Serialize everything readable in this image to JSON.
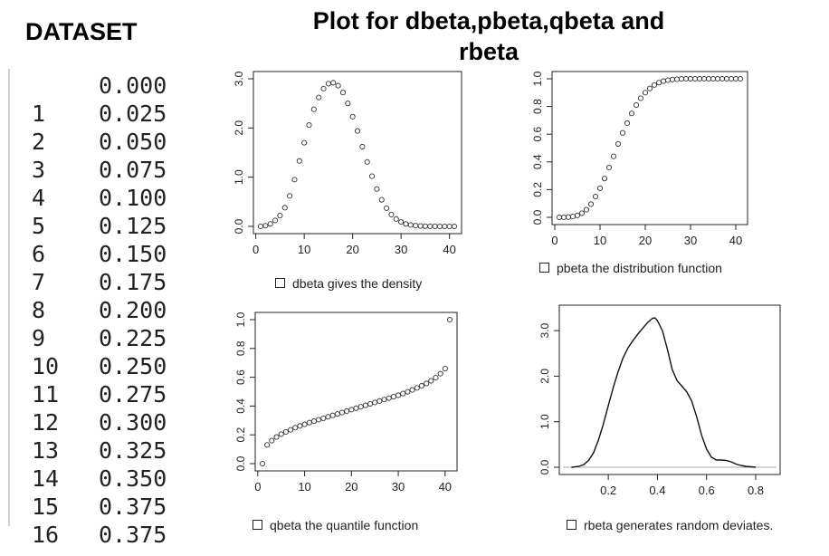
{
  "dataset": {
    "title": "DATASET",
    "rows": [
      {
        "index": "",
        "value": "0.000"
      },
      {
        "index": "1",
        "value": "0.025"
      },
      {
        "index": "2",
        "value": "0.050"
      },
      {
        "index": "3",
        "value": "0.075"
      },
      {
        "index": "4",
        "value": "0.100"
      },
      {
        "index": "5",
        "value": "0.125"
      },
      {
        "index": "6",
        "value": "0.150"
      },
      {
        "index": "7",
        "value": "0.175"
      },
      {
        "index": "8",
        "value": "0.200"
      },
      {
        "index": "9",
        "value": "0.225"
      },
      {
        "index": "10",
        "value": "0.250"
      },
      {
        "index": "11",
        "value": "0.275"
      },
      {
        "index": "12",
        "value": "0.300"
      },
      {
        "index": "13",
        "value": "0.325"
      },
      {
        "index": "14",
        "value": "0.350"
      },
      {
        "index": "15",
        "value": "0.375"
      },
      {
        "index": "16",
        "value": "0.375"
      }
    ]
  },
  "main_title_line1": "Plot for dbeta,pbeta,qbeta and",
  "main_title_line2": "rbeta",
  "chart_data": [
    {
      "id": "dbeta",
      "type": "scatter",
      "caption": "dbeta gives the density",
      "xlim": [
        1,
        41
      ],
      "ylim": [
        0,
        3
      ],
      "xticks": [
        0,
        10,
        20,
        30,
        40
      ],
      "xtick_labels": [
        "0",
        "10",
        "20",
        "30",
        "40"
      ],
      "yticks": [
        0,
        1,
        2,
        3
      ],
      "ytick_labels": [
        "0.0",
        "1.0",
        "2.0",
        "3.0"
      ],
      "x": [
        1,
        2,
        3,
        4,
        5,
        6,
        7,
        8,
        9,
        10,
        11,
        12,
        13,
        14,
        15,
        16,
        17,
        18,
        19,
        20,
        21,
        22,
        23,
        24,
        25,
        26,
        27,
        28,
        29,
        30,
        31,
        32,
        33,
        34,
        35,
        36,
        37,
        38,
        39,
        40,
        41
      ],
      "y": [
        0.0,
        0.014,
        0.05,
        0.12,
        0.22,
        0.38,
        0.62,
        0.95,
        1.33,
        1.7,
        2.06,
        2.38,
        2.62,
        2.8,
        2.9,
        2.92,
        2.86,
        2.72,
        2.5,
        2.23,
        1.94,
        1.62,
        1.31,
        1.02,
        0.76,
        0.54,
        0.37,
        0.24,
        0.15,
        0.09,
        0.05,
        0.03,
        0.016,
        0.008,
        0.004,
        0.002,
        0.001,
        0.0,
        0.0,
        0.0,
        0.0
      ]
    },
    {
      "id": "pbeta",
      "type": "scatter",
      "caption": "pbeta the distribution function",
      "xlim": [
        1,
        41
      ],
      "ylim": [
        0,
        1
      ],
      "xticks": [
        0,
        10,
        20,
        30,
        40
      ],
      "xtick_labels": [
        "0",
        "10",
        "20",
        "30",
        "40"
      ],
      "yticks": [
        0,
        0.2,
        0.4,
        0.6,
        0.8,
        1.0
      ],
      "ytick_labels": [
        "0.0",
        "0.2",
        "0.4",
        "0.6",
        "0.8",
        "1.0"
      ],
      "x": [
        1,
        2,
        3,
        4,
        5,
        6,
        7,
        8,
        9,
        10,
        11,
        12,
        13,
        14,
        15,
        16,
        17,
        18,
        19,
        20,
        21,
        22,
        23,
        24,
        25,
        26,
        27,
        28,
        29,
        30,
        31,
        32,
        33,
        34,
        35,
        36,
        37,
        38,
        39,
        40,
        41
      ],
      "y": [
        0.0,
        0.0,
        0.002,
        0.006,
        0.014,
        0.03,
        0.055,
        0.095,
        0.15,
        0.21,
        0.28,
        0.36,
        0.44,
        0.53,
        0.61,
        0.68,
        0.75,
        0.81,
        0.86,
        0.9,
        0.93,
        0.955,
        0.972,
        0.983,
        0.99,
        0.995,
        0.997,
        0.999,
        1.0,
        1.0,
        1.0,
        1.0,
        1.0,
        1.0,
        1.0,
        1.0,
        1.0,
        1.0,
        1.0,
        1.0,
        1.0
      ]
    },
    {
      "id": "qbeta",
      "type": "scatter",
      "caption": "qbeta the quantile function",
      "xlim": [
        1,
        41
      ],
      "ylim": [
        0,
        1
      ],
      "xticks": [
        0,
        10,
        20,
        30,
        40
      ],
      "xtick_labels": [
        "0",
        "10",
        "20",
        "30",
        "40"
      ],
      "yticks": [
        0,
        0.2,
        0.4,
        0.6,
        0.8,
        1.0
      ],
      "ytick_labels": [
        "0.0",
        "0.2",
        "0.4",
        "0.6",
        "0.8",
        "1.0"
      ],
      "x": [
        1,
        2,
        3,
        4,
        5,
        6,
        7,
        8,
        9,
        10,
        11,
        12,
        13,
        14,
        15,
        16,
        17,
        18,
        19,
        20,
        21,
        22,
        23,
        24,
        25,
        26,
        27,
        28,
        29,
        30,
        31,
        32,
        33,
        34,
        35,
        36,
        37,
        38,
        39,
        40,
        41
      ],
      "y": [
        0.0,
        0.13,
        0.16,
        0.185,
        0.205,
        0.22,
        0.235,
        0.25,
        0.262,
        0.273,
        0.285,
        0.295,
        0.305,
        0.315,
        0.325,
        0.335,
        0.345,
        0.355,
        0.365,
        0.375,
        0.385,
        0.395,
        0.405,
        0.415,
        0.425,
        0.435,
        0.445,
        0.455,
        0.465,
        0.475,
        0.487,
        0.499,
        0.512,
        0.526,
        0.541,
        0.557,
        0.575,
        0.597,
        0.625,
        0.66,
        1.0
      ]
    },
    {
      "id": "rbeta",
      "type": "line",
      "caption": "rbeta generates random deviates.",
      "xlim": [
        0.03,
        0.87
      ],
      "ylim": [
        0,
        3.4
      ],
      "xticks": [
        0.2,
        0.4,
        0.6,
        0.8
      ],
      "xtick_labels": [
        "0.2",
        "0.4",
        "0.6",
        "0.8"
      ],
      "yticks": [
        0,
        1,
        2,
        3
      ],
      "ytick_labels": [
        "0.0",
        "1.0",
        "2.0",
        "3.0"
      ],
      "x": [
        0.05,
        0.08,
        0.1,
        0.12,
        0.14,
        0.16,
        0.18,
        0.2,
        0.22,
        0.24,
        0.26,
        0.28,
        0.3,
        0.32,
        0.34,
        0.36,
        0.38,
        0.39,
        0.4,
        0.42,
        0.44,
        0.46,
        0.48,
        0.5,
        0.52,
        0.54,
        0.56,
        0.58,
        0.6,
        0.62,
        0.64,
        0.66,
        0.68,
        0.7,
        0.72,
        0.74,
        0.76,
        0.78,
        0.8
      ],
      "y": [
        0.0,
        0.02,
        0.06,
        0.15,
        0.32,
        0.6,
        0.95,
        1.35,
        1.75,
        2.1,
        2.4,
        2.62,
        2.78,
        2.92,
        3.05,
        3.18,
        3.27,
        3.28,
        3.22,
        3.0,
        2.6,
        2.15,
        1.9,
        1.78,
        1.65,
        1.45,
        1.1,
        0.7,
        0.4,
        0.22,
        0.16,
        0.16,
        0.15,
        0.12,
        0.07,
        0.04,
        0.02,
        0.01,
        0.0
      ]
    }
  ]
}
